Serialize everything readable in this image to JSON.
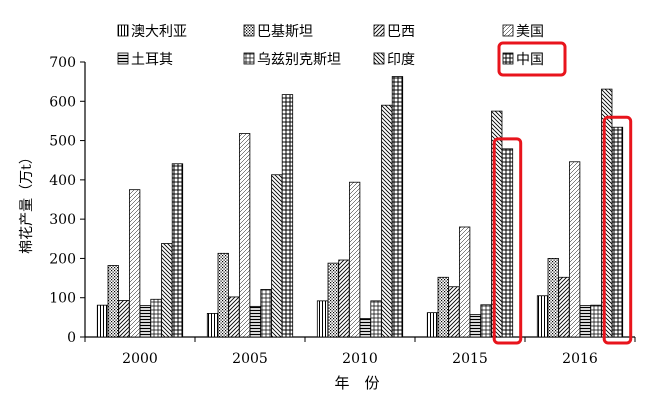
{
  "chart_data": {
    "type": "bar",
    "categories": [
      "2000",
      "2005",
      "2010",
      "2015",
      "2016"
    ],
    "series": [
      {
        "name": "澳大利亚",
        "values": [
          81,
          60,
          92,
          62,
          105
        ]
      },
      {
        "name": "巴基斯坦",
        "values": [
          182,
          213,
          188,
          152,
          200
        ]
      },
      {
        "name": "巴西",
        "values": [
          93,
          102,
          196,
          128,
          152
        ]
      },
      {
        "name": "美国",
        "values": [
          375,
          518,
          394,
          280,
          446
        ]
      },
      {
        "name": "土耳其",
        "values": [
          80,
          78,
          47,
          57,
          80
        ]
      },
      {
        "name": "乌兹别克斯坦",
        "values": [
          96,
          121,
          92,
          82,
          81
        ]
      },
      {
        "name": "印度",
        "values": [
          238,
          413,
          590,
          575,
          631
        ]
      },
      {
        "name": "中国",
        "values": [
          441,
          617,
          663,
          479,
          534
        ]
      }
    ],
    "xlabel": "年　份",
    "ylabel": "棉花产量（万t）",
    "ylim": [
      0,
      700
    ],
    "yticks": [
      0,
      100,
      200,
      300,
      400,
      500,
      600,
      700
    ],
    "highlight": {
      "series": "中国",
      "categories": [
        "2015",
        "2016"
      ],
      "color": "#e8141c"
    },
    "legend_position": "top"
  }
}
